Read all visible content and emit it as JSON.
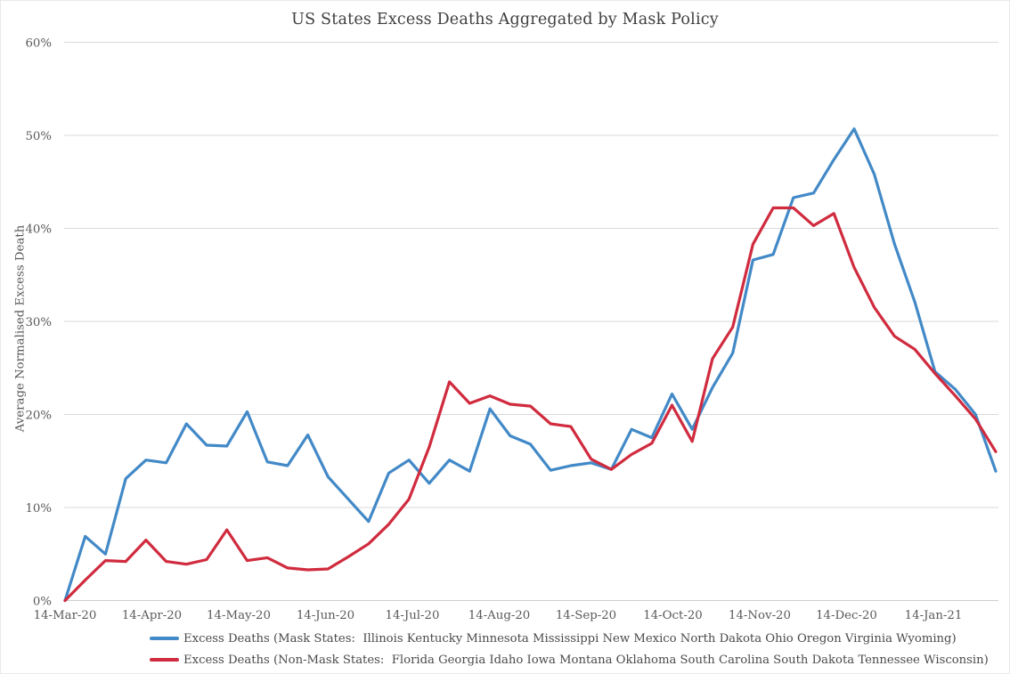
{
  "colors": {
    "background": "#ffffff",
    "grid": "#d9d9d9",
    "axis_line": "#cfcfcf",
    "axis_text": "#595959",
    "title_text": "#3f3f3f",
    "mask_series": "#4289c7",
    "non_mask_series": "#d02b3e"
  },
  "chart_data": {
    "type": "line",
    "title": "US States Excess Deaths Aggregated by Mask Policy",
    "xlabel": "",
    "ylabel": "Average Normalised Excess Death",
    "ylim": [
      0,
      60
    ],
    "grid": true,
    "legend_position": "bottom-left",
    "x_interval": "weekly points, first point 14-Mar-20",
    "x_tick_labels": [
      "14-Mar-20",
      "14-Apr-20",
      "14-May-20",
      "14-Jun-20",
      "14-Jul-20",
      "14-Aug-20",
      "14-Sep-20",
      "14-Oct-20",
      "14-Nov-20",
      "14-Dec-20",
      "14-Jan-21"
    ],
    "y_tick_labels": [
      "0%",
      "10%",
      "20%",
      "30%",
      "40%",
      "50%",
      "60%"
    ],
    "series": [
      {
        "name": "Excess Deaths (Mask States:  Illinois Kentucky Minnesota Mississippi New Mexico North Dakota Ohio Oregon Virginia Wyoming)",
        "color": "#4289c7",
        "values": [
          0.0,
          6.9,
          5.0,
          13.1,
          15.1,
          14.8,
          19.0,
          16.7,
          16.6,
          20.3,
          14.9,
          14.5,
          17.8,
          13.3,
          10.9,
          8.5,
          13.7,
          15.1,
          12.6,
          15.1,
          13.9,
          20.6,
          17.7,
          16.8,
          14.0,
          14.5,
          14.8,
          14.1,
          18.4,
          17.5,
          22.2,
          18.4,
          22.9,
          26.6,
          36.6,
          37.2,
          43.3,
          43.8,
          47.4,
          50.7,
          45.8,
          38.3,
          32.1,
          24.6,
          22.7,
          20.0,
          13.9
        ]
      },
      {
        "name": "Excess Deaths (Non-Mask States:  Florida Georgia Idaho Iowa Montana Oklahoma South Carolina South Dakota Tennessee Wisconsin)",
        "color": "#d02b3e",
        "values": [
          0.0,
          2.2,
          4.3,
          4.2,
          6.5,
          4.2,
          3.9,
          4.4,
          7.6,
          4.3,
          4.6,
          3.5,
          3.3,
          3.4,
          4.7,
          6.1,
          8.2,
          10.9,
          16.5,
          23.5,
          21.2,
          22.0,
          21.1,
          20.9,
          19.0,
          18.7,
          15.2,
          14.1,
          15.7,
          16.9,
          21.0,
          17.1,
          26.0,
          29.4,
          38.3,
          42.2,
          42.2,
          40.3,
          41.6,
          35.8,
          31.5,
          28.4,
          27.0,
          24.4,
          22.0,
          19.5,
          16.0
        ]
      }
    ]
  }
}
